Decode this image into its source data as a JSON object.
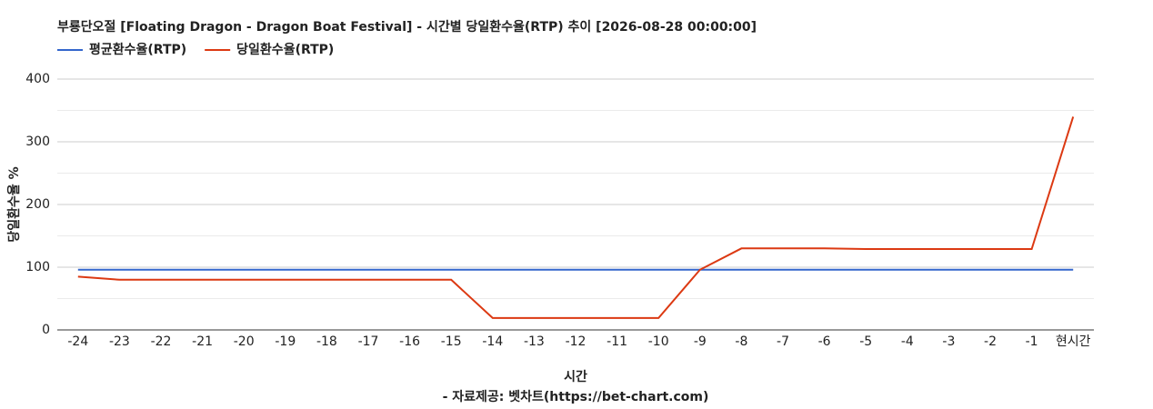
{
  "chart_data": {
    "type": "line",
    "title": "부룡단오절 [Floating Dragon - Dragon Boat Festival] - 시간별 당일환수율(RTP) 추이 [2026-08-28 00:00:00]",
    "x_label": "시간",
    "y_label": "당일환수율 %",
    "source": "- 자료제공: 벳차트(https://bet-chart.com)",
    "categories": [
      "-24",
      "-23",
      "-22",
      "-21",
      "-20",
      "-19",
      "-18",
      "-17",
      "-16",
      "-15",
      "-14",
      "-13",
      "-12",
      "-11",
      "-10",
      "-9",
      "-8",
      "-7",
      "-6",
      "-5",
      "-4",
      "-3",
      "-2",
      "-1",
      "현시간"
    ],
    "series": [
      {
        "name": "평균환수율(RTP)",
        "color": "#3366cc",
        "values": [
          96,
          96,
          96,
          96,
          96,
          96,
          96,
          96,
          96,
          96,
          96,
          96,
          96,
          96,
          96,
          96,
          96,
          96,
          96,
          96,
          96,
          96,
          96,
          96,
          96
        ]
      },
      {
        "name": "당일환수율(RTP)",
        "color": "#dc3912",
        "values": [
          85,
          80,
          80,
          80,
          80,
          80,
          80,
          80,
          80,
          80,
          19,
          19,
          19,
          19,
          19,
          96,
          130,
          130,
          130,
          129,
          129,
          129,
          129,
          129,
          340
        ]
      }
    ],
    "ylim": [
      0,
      400
    ],
    "yticks": [
      0,
      100,
      200,
      300,
      400
    ],
    "minor_yticks": [
      50,
      150,
      250,
      350
    ],
    "grid": true,
    "legend": "top-left"
  }
}
